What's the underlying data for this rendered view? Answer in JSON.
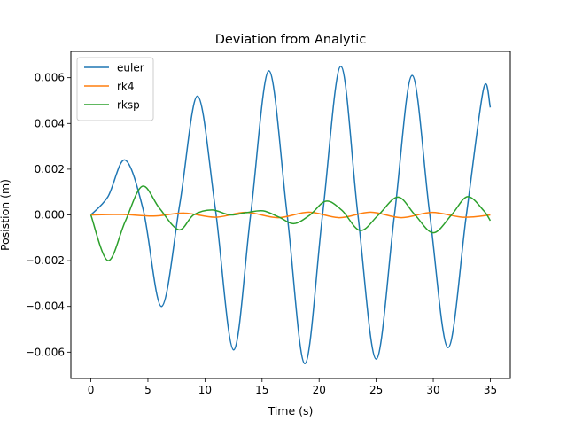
{
  "chart_data": {
    "type": "line",
    "title": "Deviation from Analytic",
    "xlabel": "Time (s)",
    "ylabel": "Posistion (m)",
    "xlim": [
      -1.75,
      36.75
    ],
    "ylim": [
      -0.00715,
      0.00715
    ],
    "xticks": [
      0,
      5,
      10,
      15,
      20,
      25,
      30,
      35
    ],
    "xtick_labels": [
      "0",
      "5",
      "10",
      "15",
      "20",
      "25",
      "30",
      "35"
    ],
    "yticks": [
      -0.006,
      -0.004,
      -0.002,
      0.0,
      0.002,
      0.004,
      0.006
    ],
    "ytick_labels": [
      "−0.006",
      "−0.004",
      "−0.002",
      "0.000",
      "0.002",
      "0.004",
      "0.006"
    ],
    "grid": false,
    "legend": "top-left",
    "series": [
      {
        "name": "euler",
        "color": "#1f77b4",
        "x": [
          0,
          1.5,
          3.0,
          4.6,
          6.2,
          7.8,
          9.35,
          10.9,
          12.5,
          14.0,
          15.6,
          17.2,
          18.75,
          20.3,
          21.9,
          23.4,
          25.0,
          26.6,
          28.15,
          29.7,
          31.3,
          32.9,
          34.4,
          35.0
        ],
        "y": [
          0,
          0.0008,
          0.0024,
          0.0002,
          -0.004,
          0.0005,
          0.0052,
          0.0003,
          -0.0059,
          0.0,
          0.0063,
          0.0,
          -0.0065,
          0.0,
          0.0065,
          0.0,
          -0.0063,
          0.0,
          0.0061,
          0.0,
          -0.0058,
          0.0,
          0.0055,
          0.0047
        ]
      },
      {
        "name": "rk4",
        "color": "#ff7f0e",
        "x": [
          0,
          2.8,
          5.5,
          8.2,
          10.9,
          13.6,
          16.4,
          19.1,
          21.8,
          24.5,
          27.2,
          29.9,
          32.6,
          35.0
        ],
        "y": [
          0,
          2e-05,
          -5e-05,
          8e-05,
          -0.0001,
          0.00011,
          -0.00012,
          0.00012,
          -0.00012,
          0.00012,
          -0.00012,
          0.00011,
          -0.0001,
          0.0
        ]
      },
      {
        "name": "rksp",
        "color": "#2ca02c",
        "x": [
          0,
          1.5,
          3.0,
          4.5,
          6.0,
          7.7,
          9.0,
          10.6,
          12.2,
          13.6,
          15.1,
          16.5,
          17.8,
          19.2,
          20.6,
          22.0,
          23.6,
          25.2,
          26.9,
          28.4,
          30.0,
          31.6,
          33.0,
          34.4,
          35.0
        ],
        "y": [
          0,
          -0.002,
          -0.0003,
          0.00125,
          0.0003,
          -0.00065,
          0.0,
          0.00022,
          0.0,
          0.0001,
          0.00018,
          -0.0001,
          -0.00038,
          0.0,
          0.0006,
          0.0002,
          -0.00068,
          0.0,
          0.00078,
          0.0,
          -0.00078,
          0.0,
          0.0008,
          0.0002,
          -0.00025
        ]
      }
    ]
  }
}
